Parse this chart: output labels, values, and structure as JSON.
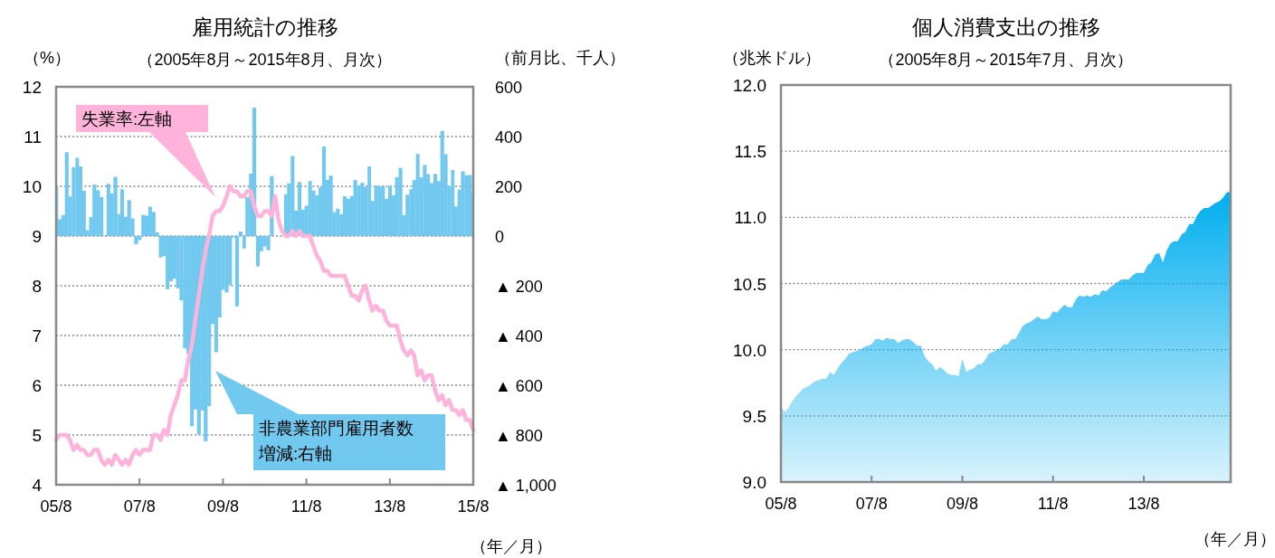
{
  "chart_data": [
    {
      "type": "bar",
      "title": "雇用統計の推移",
      "subtitle": "（2005年8月～2015年8月、月次）",
      "ylabel": "（%）",
      "y2label": "（前月比、千人）",
      "xlabel": "（年／月）",
      "x": [
        "2005-08",
        "2005-09",
        "2005-10",
        "2005-11",
        "2005-12",
        "2006-01",
        "2006-02",
        "2006-03",
        "2006-04",
        "2006-05",
        "2006-06",
        "2006-07",
        "2006-08",
        "2006-09",
        "2006-10",
        "2006-11",
        "2006-12",
        "2007-01",
        "2007-02",
        "2007-03",
        "2007-04",
        "2007-05",
        "2007-06",
        "2007-07",
        "2007-08",
        "2007-09",
        "2007-10",
        "2007-11",
        "2007-12",
        "2008-01",
        "2008-02",
        "2008-03",
        "2008-04",
        "2008-05",
        "2008-06",
        "2008-07",
        "2008-08",
        "2008-09",
        "2008-10",
        "2008-11",
        "2008-12",
        "2009-01",
        "2009-02",
        "2009-03",
        "2009-04",
        "2009-05",
        "2009-06",
        "2009-07",
        "2009-08",
        "2009-09",
        "2009-10",
        "2009-11",
        "2009-12",
        "2010-01",
        "2010-02",
        "2010-03",
        "2010-04",
        "2010-05",
        "2010-06",
        "2010-07",
        "2010-08",
        "2010-09",
        "2010-10",
        "2010-11",
        "2010-12",
        "2011-01",
        "2011-02",
        "2011-03",
        "2011-04",
        "2011-05",
        "2011-06",
        "2011-07",
        "2011-08",
        "2011-09",
        "2011-10",
        "2011-11",
        "2011-12",
        "2012-01",
        "2012-02",
        "2012-03",
        "2012-04",
        "2012-05",
        "2012-06",
        "2012-07",
        "2012-08",
        "2012-09",
        "2012-10",
        "2012-11",
        "2012-12",
        "2013-01",
        "2013-02",
        "2013-03",
        "2013-04",
        "2013-05",
        "2013-06",
        "2013-07",
        "2013-08",
        "2013-09",
        "2013-10",
        "2013-11",
        "2013-12",
        "2014-01",
        "2014-02",
        "2014-03",
        "2014-04",
        "2014-05",
        "2014-06",
        "2014-07",
        "2014-08",
        "2014-09",
        "2014-10",
        "2014-11",
        "2014-12",
        "2015-01",
        "2015-02",
        "2015-03",
        "2015-04",
        "2015-05",
        "2015-06",
        "2015-07",
        "2015-08"
      ],
      "xlim": [
        "2005-08",
        "2015-08"
      ],
      "xticks": [
        {
          "value": "2005-08",
          "label": "05/8"
        },
        {
          "value": "2007-08",
          "label": "07/8"
        },
        {
          "value": "2009-08",
          "label": "09/8"
        },
        {
          "value": "2011-08",
          "label": "11/8"
        },
        {
          "value": "2013-08",
          "label": "13/8"
        },
        {
          "value": "2015-08",
          "label": "15/8"
        }
      ],
      "ylim": [
        4,
        12
      ],
      "yticks": [
        4,
        5,
        6,
        7,
        8,
        9,
        10,
        11,
        12
      ],
      "y2lim": [
        -1000,
        600
      ],
      "y2ticks": [
        {
          "value": -1000,
          "label": "▲ 1,000"
        },
        {
          "value": -800,
          "label": "▲ 800"
        },
        {
          "value": -600,
          "label": "▲ 600"
        },
        {
          "value": -400,
          "label": "▲ 400"
        },
        {
          "value": -200,
          "label": "▲ 200"
        },
        0,
        200,
        400,
        600
      ],
      "grid": "y",
      "legend": false,
      "series": [
        {
          "name": "非農業部門雇用者数増減:右軸",
          "axis": "y2",
          "color": "#72c9ef",
          "values": [
            196,
            67,
            84,
            337,
            159,
            277,
            315,
            280,
            182,
            23,
            77,
            207,
            184,
            157,
            2,
            210,
            171,
            238,
            88,
            188,
            78,
            144,
            71,
            -33,
            -16,
            85,
            82,
            118,
            97,
            15,
            -86,
            -80,
            -214,
            -182,
            -172,
            -210,
            -259,
            -452,
            -474,
            -765,
            -697,
            -798,
            -701,
            -826,
            -684,
            -354,
            -467,
            -327,
            -216,
            -227,
            -198,
            -6,
            -283,
            18,
            -50,
            156,
            251,
            516,
            -122,
            -61,
            -42,
            -57,
            241,
            null,
            null,
            null,
            168,
            212,
            322,
            102,
            217,
            106,
            122,
            221,
            183,
            164,
            196,
            360,
            226,
            243,
            96,
            110,
            88,
            160,
            150,
            161,
            225,
            203,
            214,
            197,
            280,
            141,
            203,
            199,
            201,
            149,
            202,
            164,
            237,
            274,
            84,
            166,
            188,
            225,
            330,
            236,
            286,
            249,
            213,
            250,
            221,
            423,
            329,
            201,
            266,
            119,
            187,
            260,
            245,
            245,
            173
          ]
        },
        {
          "name": "失業率:左軸",
          "type": "line",
          "color": "#ffb3da",
          "values": [
            4.9,
            5.0,
            5.0,
            5.0,
            4.9,
            4.7,
            4.8,
            4.7,
            4.7,
            4.6,
            4.6,
            4.7,
            4.7,
            4.5,
            4.4,
            4.5,
            4.4,
            4.6,
            4.5,
            4.4,
            4.5,
            4.4,
            4.6,
            4.7,
            4.6,
            4.7,
            4.7,
            4.7,
            5.0,
            5.0,
            4.9,
            5.1,
            5.0,
            5.4,
            5.6,
            5.8,
            6.1,
            6.1,
            6.5,
            6.8,
            7.3,
            7.8,
            8.3,
            8.7,
            9.0,
            9.4,
            9.5,
            9.5,
            9.6,
            9.8,
            10.0,
            9.9,
            9.9,
            9.8,
            9.8,
            9.9,
            9.9,
            9.6,
            9.4,
            9.4,
            9.5,
            9.5,
            9.4,
            9.8,
            9.3,
            9.1,
            9.0,
            9.0,
            9.1,
            9.0,
            9.1,
            9.0,
            9.0,
            9.0,
            8.8,
            8.6,
            8.5,
            8.3,
            8.3,
            8.2,
            8.2,
            8.2,
            8.2,
            8.2,
            8.0,
            7.8,
            7.8,
            7.7,
            7.9,
            8.0,
            7.7,
            7.5,
            7.6,
            7.5,
            7.5,
            7.3,
            7.2,
            7.2,
            7.2,
            6.9,
            6.7,
            6.6,
            6.7,
            6.6,
            6.2,
            6.3,
            6.1,
            6.2,
            6.2,
            5.9,
            5.7,
            5.8,
            5.6,
            5.7,
            5.5,
            5.5,
            5.4,
            5.5,
            5.3,
            5.3,
            5.1
          ]
        }
      ]
    },
    {
      "type": "area",
      "title": "個人消費支出の推移",
      "subtitle": "（2005年8月～2015年7月、月次）",
      "ylabel": "（兆米ドル）",
      "xlabel": "（年／月）",
      "x": [
        "2005-08",
        "2005-09",
        "2005-10",
        "2005-11",
        "2005-12",
        "2006-01",
        "2006-02",
        "2006-03",
        "2006-04",
        "2006-05",
        "2006-06",
        "2006-07",
        "2006-08",
        "2006-09",
        "2006-10",
        "2006-11",
        "2006-12",
        "2007-01",
        "2007-02",
        "2007-03",
        "2007-04",
        "2007-05",
        "2007-06",
        "2007-07",
        "2007-08",
        "2007-09",
        "2007-10",
        "2007-11",
        "2007-12",
        "2008-01",
        "2008-02",
        "2008-03",
        "2008-04",
        "2008-05",
        "2008-06",
        "2008-07",
        "2008-08",
        "2008-09",
        "2008-10",
        "2008-11",
        "2008-12",
        "2009-01",
        "2009-02",
        "2009-03",
        "2009-04",
        "2009-05",
        "2009-06",
        "2009-07",
        "2009-08",
        "2009-09",
        "2009-10",
        "2009-11",
        "2009-12",
        "2010-01",
        "2010-02",
        "2010-03",
        "2010-04",
        "2010-05",
        "2010-06",
        "2010-07",
        "2010-08",
        "2010-09",
        "2010-10",
        "2010-11",
        "2010-12",
        "2011-01",
        "2011-02",
        "2011-03",
        "2011-04",
        "2011-05",
        "2011-06",
        "2011-07",
        "2011-08",
        "2011-09",
        "2011-10",
        "2011-11",
        "2011-12",
        "2012-01",
        "2012-02",
        "2012-03",
        "2012-04",
        "2012-05",
        "2012-06",
        "2012-07",
        "2012-08",
        "2012-09",
        "2012-10",
        "2012-11",
        "2012-12",
        "2013-01",
        "2013-02",
        "2013-03",
        "2013-04",
        "2013-05",
        "2013-06",
        "2013-07",
        "2013-08",
        "2013-09",
        "2013-10",
        "2013-11",
        "2013-12",
        "2014-01",
        "2014-02",
        "2014-03",
        "2014-04",
        "2014-05",
        "2014-06",
        "2014-07",
        "2014-08",
        "2014-09",
        "2014-10",
        "2014-11",
        "2014-12",
        "2015-01",
        "2015-02",
        "2015-03",
        "2015-04",
        "2015-05",
        "2015-06",
        "2015-07"
      ],
      "xlim": [
        "2005-08",
        "2015-07"
      ],
      "xticks": [
        {
          "value": "2005-08",
          "label": "05/8"
        },
        {
          "value": "2007-08",
          "label": "07/8"
        },
        {
          "value": "2009-08",
          "label": "09/8"
        },
        {
          "value": "2011-08",
          "label": "11/8"
        },
        {
          "value": "2013-08",
          "label": "13/8"
        }
      ],
      "ylim": [
        9,
        12
      ],
      "yticks": [
        {
          "value": 9,
          "label": "9.0"
        },
        {
          "value": 9.5,
          "label": "9.5"
        },
        {
          "value": 10,
          "label": "10.0"
        },
        {
          "value": 10.5,
          "label": "10.5"
        },
        {
          "value": 11,
          "label": "11.0"
        },
        {
          "value": 11.5,
          "label": "11.5"
        },
        {
          "value": 12,
          "label": "12.0"
        }
      ],
      "grid": "y",
      "legend": false,
      "series": [
        {
          "color": "#00aeef",
          "values": [
            9.57,
            9.53,
            9.56,
            9.61,
            9.65,
            9.68,
            9.71,
            9.72,
            9.74,
            9.76,
            9.77,
            9.78,
            9.78,
            9.83,
            9.81,
            9.86,
            9.9,
            9.93,
            9.97,
            9.98,
            9.99,
            10.0,
            10.02,
            10.03,
            10.04,
            10.08,
            10.08,
            10.07,
            10.09,
            10.08,
            10.08,
            10.05,
            10.07,
            10.08,
            10.08,
            10.06,
            10.03,
            10.03,
            9.95,
            9.91,
            9.89,
            9.84,
            9.87,
            9.85,
            9.82,
            9.81,
            9.81,
            9.8,
            9.93,
            9.83,
            9.85,
            9.86,
            9.89,
            9.89,
            9.92,
            9.97,
            9.98,
            10.0,
            10.01,
            10.04,
            10.04,
            10.08,
            10.08,
            10.13,
            10.18,
            10.2,
            10.21,
            10.23,
            10.25,
            10.23,
            10.23,
            10.24,
            10.29,
            10.28,
            10.31,
            10.34,
            10.32,
            10.32,
            10.38,
            10.41,
            10.4,
            10.41,
            10.4,
            10.42,
            10.41,
            10.45,
            10.44,
            10.47,
            10.49,
            10.51,
            10.53,
            10.53,
            10.53,
            10.56,
            10.58,
            10.58,
            10.58,
            10.64,
            10.66,
            10.72,
            10.73,
            10.66,
            10.75,
            10.8,
            10.82,
            10.82,
            10.87,
            10.89,
            10.95,
            10.95,
            11.01,
            11.05,
            11.07,
            11.07,
            11.09,
            11.11,
            11.12,
            11.15,
            11.19,
            11.19
          ]
        }
      ]
    }
  ]
}
